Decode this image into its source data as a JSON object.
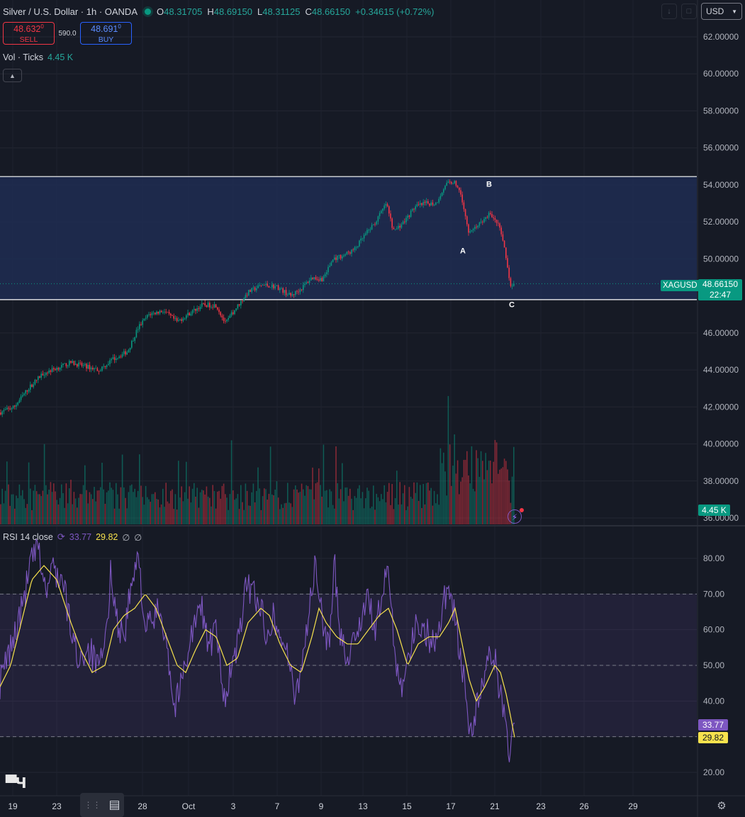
{
  "header": {
    "symbol_title": "Silver / U.S. Dollar · 1h · OANDA",
    "o_label": "O",
    "o_value": "48.31705",
    "h_label": "H",
    "h_value": "48.69150",
    "l_label": "L",
    "l_value": "48.31125",
    "c_label": "C",
    "c_value": "48.66150",
    "change": "+0.34615 (+0.72%)",
    "currency": "USD"
  },
  "trade": {
    "sell_price": "48.632",
    "sell_price_small": "0",
    "sell_label": "SELL",
    "spread": "590.0",
    "buy_price": "48.691",
    "buy_price_small": "0",
    "buy_label": "BUY"
  },
  "volume_legend": {
    "label": "Vol · Ticks",
    "value": "4.45 K"
  },
  "rsi_legend": {
    "label": "RSI 14 close",
    "rsi": "33.77",
    "rsi_ma": "29.82",
    "v3": "∅",
    "v4": "∅"
  },
  "price_tags": {
    "symbol": "XAGUSD",
    "last_price": "48.66150",
    "countdown": "22:47",
    "volume": "4.45 K",
    "rsi": "33.77",
    "rsi_ma": "29.82"
  },
  "colors": {
    "bull": "#089981",
    "bear": "#f23645",
    "rsi_line": "#7e57c2",
    "rsi_ma": "#f7e24d",
    "zone": "#1e2d52"
  },
  "chart_data": [
    {
      "type": "candlestick",
      "title": "Silver / U.S. Dollar · 1h · OANDA",
      "y_ticks": [
        "62.00000",
        "60.00000",
        "58.00000",
        "56.00000",
        "54.00000",
        "52.00000",
        "50.00000",
        "48.00000",
        "46.00000",
        "44.00000",
        "42.00000",
        "40.00000",
        "38.00000",
        "36.00000"
      ],
      "ylim": [
        35.7,
        63.4
      ],
      "x_ticks": [
        "19",
        "23",
        "28",
        "Oct",
        "3",
        "7",
        "9",
        "13",
        "15",
        "17",
        "21",
        "23",
        "26",
        "29"
      ],
      "close_path": [
        [
          0,
          41.7
        ],
        [
          20,
          42.0
        ],
        [
          40,
          43.0
        ],
        [
          60,
          43.8
        ],
        [
          80,
          44.1
        ],
        [
          100,
          44.4
        ],
        [
          120,
          44.2
        ],
        [
          140,
          44.0
        ],
        [
          160,
          44.6
        ],
        [
          180,
          45.0
        ],
        [
          195,
          46.3
        ],
        [
          210,
          47.0
        ],
        [
          230,
          47.2
        ],
        [
          250,
          46.6
        ],
        [
          265,
          47.0
        ],
        [
          285,
          47.5
        ],
        [
          305,
          47.5
        ],
        [
          318,
          46.5
        ],
        [
          330,
          47.2
        ],
        [
          350,
          48.2
        ],
        [
          370,
          48.6
        ],
        [
          390,
          48.5
        ],
        [
          410,
          48.0
        ],
        [
          425,
          48.4
        ],
        [
          440,
          49.0
        ],
        [
          455,
          48.9
        ],
        [
          470,
          50.0
        ],
        [
          485,
          50.2
        ],
        [
          500,
          50.5
        ],
        [
          515,
          51.3
        ],
        [
          530,
          52.0
        ],
        [
          545,
          53.0
        ],
        [
          555,
          51.5
        ],
        [
          570,
          52.0
        ],
        [
          585,
          52.8
        ],
        [
          600,
          53.0
        ],
        [
          615,
          53.0
        ],
        [
          628,
          54.0
        ],
        [
          640,
          54.2
        ],
        [
          650,
          53.6
        ],
        [
          660,
          51.5
        ],
        [
          670,
          51.7
        ],
        [
          680,
          52.0
        ],
        [
          690,
          52.4
        ],
        [
          700,
          52.1
        ],
        [
          708,
          51.3
        ],
        [
          714,
          50.0
        ],
        [
          720,
          48.5
        ],
        [
          726,
          48.66
        ]
      ],
      "zone": {
        "top": 54.45,
        "bottom": 47.8
      },
      "annotations": [
        {
          "label": "A",
          "x": 653,
          "price": 50.3
        },
        {
          "label": "B",
          "x": 690,
          "price": 53.9
        },
        {
          "label": "C",
          "x": 722,
          "price": 47.4
        }
      ],
      "last_price": 48.6615
    },
    {
      "type": "bar",
      "title": "Vol · Ticks",
      "last_value": "4.45 K"
    },
    {
      "type": "line",
      "title": "RSI 14 close",
      "y_ticks": [
        "80.00",
        "70.00",
        "60.00",
        "50.00",
        "40.00",
        "30.00",
        "20.00"
      ],
      "ylim": [
        16.5,
        84.5
      ],
      "bands": [
        70,
        50,
        30
      ],
      "rsi_path": [
        [
          0,
          45
        ],
        [
          15,
          55
        ],
        [
          30,
          65
        ],
        [
          45,
          80
        ],
        [
          55,
          82
        ],
        [
          65,
          70
        ],
        [
          75,
          78
        ],
        [
          90,
          72
        ],
        [
          100,
          60
        ],
        [
          110,
          52
        ],
        [
          125,
          55
        ],
        [
          140,
          48
        ],
        [
          150,
          58
        ],
        [
          157,
          78
        ],
        [
          165,
          62
        ],
        [
          175,
          58
        ],
        [
          185,
          72
        ],
        [
          196,
          80
        ],
        [
          205,
          60
        ],
        [
          215,
          62
        ],
        [
          225,
          66
        ],
        [
          235,
          58
        ],
        [
          245,
          38
        ],
        [
          255,
          44
        ],
        [
          265,
          55
        ],
        [
          275,
          62
        ],
        [
          285,
          66
        ],
        [
          295,
          55
        ],
        [
          305,
          60
        ],
        [
          315,
          40
        ],
        [
          325,
          48
        ],
        [
          335,
          55
        ],
        [
          345,
          70
        ],
        [
          355,
          72
        ],
        [
          365,
          68
        ],
        [
          375,
          60
        ],
        [
          385,
          64
        ],
        [
          395,
          58
        ],
        [
          405,
          55
        ],
        [
          415,
          40
        ],
        [
          425,
          50
        ],
        [
          435,
          64
        ],
        [
          445,
          78
        ],
        [
          455,
          62
        ],
        [
          465,
          56
        ],
        [
          472,
          78
        ],
        [
          480,
          60
        ],
        [
          490,
          52
        ],
        [
          500,
          58
        ],
        [
          510,
          64
        ],
        [
          520,
          68
        ],
        [
          530,
          60
        ],
        [
          540,
          70
        ],
        [
          548,
          78
        ],
        [
          556,
          56
        ],
        [
          565,
          44
        ],
        [
          575,
          52
        ],
        [
          585,
          60
        ],
        [
          595,
          62
        ],
        [
          605,
          58
        ],
        [
          615,
          56
        ],
        [
          625,
          68
        ],
        [
          632,
          72
        ],
        [
          640,
          66
        ],
        [
          648,
          54
        ],
        [
          656,
          44
        ],
        [
          663,
          30
        ],
        [
          670,
          36
        ],
        [
          680,
          44
        ],
        [
          688,
          50
        ],
        [
          696,
          54
        ],
        [
          704,
          44
        ],
        [
          712,
          38
        ],
        [
          718,
          26
        ],
        [
          726,
          33.77
        ]
      ],
      "ma_path": [
        [
          0,
          44
        ],
        [
          15,
          50
        ],
        [
          30,
          62
        ],
        [
          45,
          74
        ],
        [
          62,
          78
        ],
        [
          80,
          74
        ],
        [
          100,
          62
        ],
        [
          115,
          54
        ],
        [
          130,
          48
        ],
        [
          148,
          50
        ],
        [
          160,
          60
        ],
        [
          175,
          64
        ],
        [
          190,
          66
        ],
        [
          205,
          70
        ],
        [
          220,
          66
        ],
        [
          235,
          58
        ],
        [
          250,
          50
        ],
        [
          262,
          48
        ],
        [
          275,
          54
        ],
        [
          290,
          60
        ],
        [
          305,
          58
        ],
        [
          320,
          50
        ],
        [
          335,
          52
        ],
        [
          350,
          62
        ],
        [
          368,
          66
        ],
        [
          380,
          64
        ],
        [
          395,
          56
        ],
        [
          410,
          50
        ],
        [
          425,
          48
        ],
        [
          440,
          58
        ],
        [
          450,
          66
        ],
        [
          460,
          62
        ],
        [
          475,
          58
        ],
        [
          490,
          56
        ],
        [
          505,
          56
        ],
        [
          520,
          60
        ],
        [
          535,
          64
        ],
        [
          548,
          66
        ],
        [
          560,
          60
        ],
        [
          575,
          50
        ],
        [
          590,
          56
        ],
        [
          605,
          58
        ],
        [
          620,
          58
        ],
        [
          633,
          62
        ],
        [
          642,
          66
        ],
        [
          652,
          56
        ],
        [
          662,
          46
        ],
        [
          672,
          40
        ],
        [
          684,
          44
        ],
        [
          698,
          50
        ],
        [
          706,
          48
        ],
        [
          714,
          42
        ],
        [
          720,
          36
        ],
        [
          726,
          29.82
        ]
      ],
      "last_rsi": 33.77,
      "last_ma": 29.82
    }
  ]
}
